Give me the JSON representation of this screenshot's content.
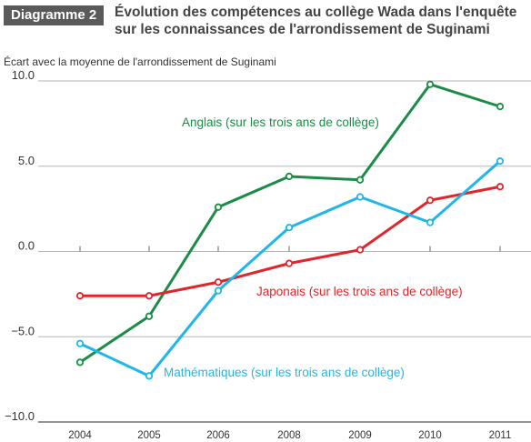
{
  "figure": {
    "tag": "Diagramme 2",
    "title": "Évolution des compétences au collège Wada dans l'enquête sur les connaissances de l'arrondissement de Suginami"
  },
  "chart_data": {
    "type": "line",
    "title": "Évolution des compétences au collège Wada dans l'enquête sur les connaissances de l'arrondissement de Suginami",
    "ylabel": "Écart avec la moyenne de l'arrondissement de Suginami",
    "xlabel": "",
    "categories": [
      "2004",
      "2005",
      "2006",
      "2008",
      "2009",
      "2010",
      "2011"
    ],
    "ylim": [
      -10.0,
      10.0
    ],
    "yticks": [
      "10.0",
      "5.0",
      "0.0",
      "−5.0",
      "−10.0"
    ],
    "ytick_values": [
      10,
      5,
      0,
      -5,
      -10
    ],
    "grid": "horizontal",
    "series": [
      {
        "name": "Anglais (sur les trois ans de collège)",
        "color": "#1a8c45",
        "values": [
          -6.5,
          -3.8,
          2.6,
          4.4,
          4.2,
          9.8,
          8.5
        ]
      },
      {
        "name": "Japonais (sur les trois ans de collège)",
        "color": "#e2252b",
        "values": [
          -2.6,
          -2.6,
          -1.8,
          -0.7,
          0.1,
          3.0,
          3.8
        ]
      },
      {
        "name": "Mathématiques (sur les trois ans de collège)",
        "color": "#20b6e8",
        "values": [
          -5.4,
          -7.3,
          -2.3,
          1.4,
          3.2,
          1.7,
          5.3
        ]
      }
    ]
  }
}
